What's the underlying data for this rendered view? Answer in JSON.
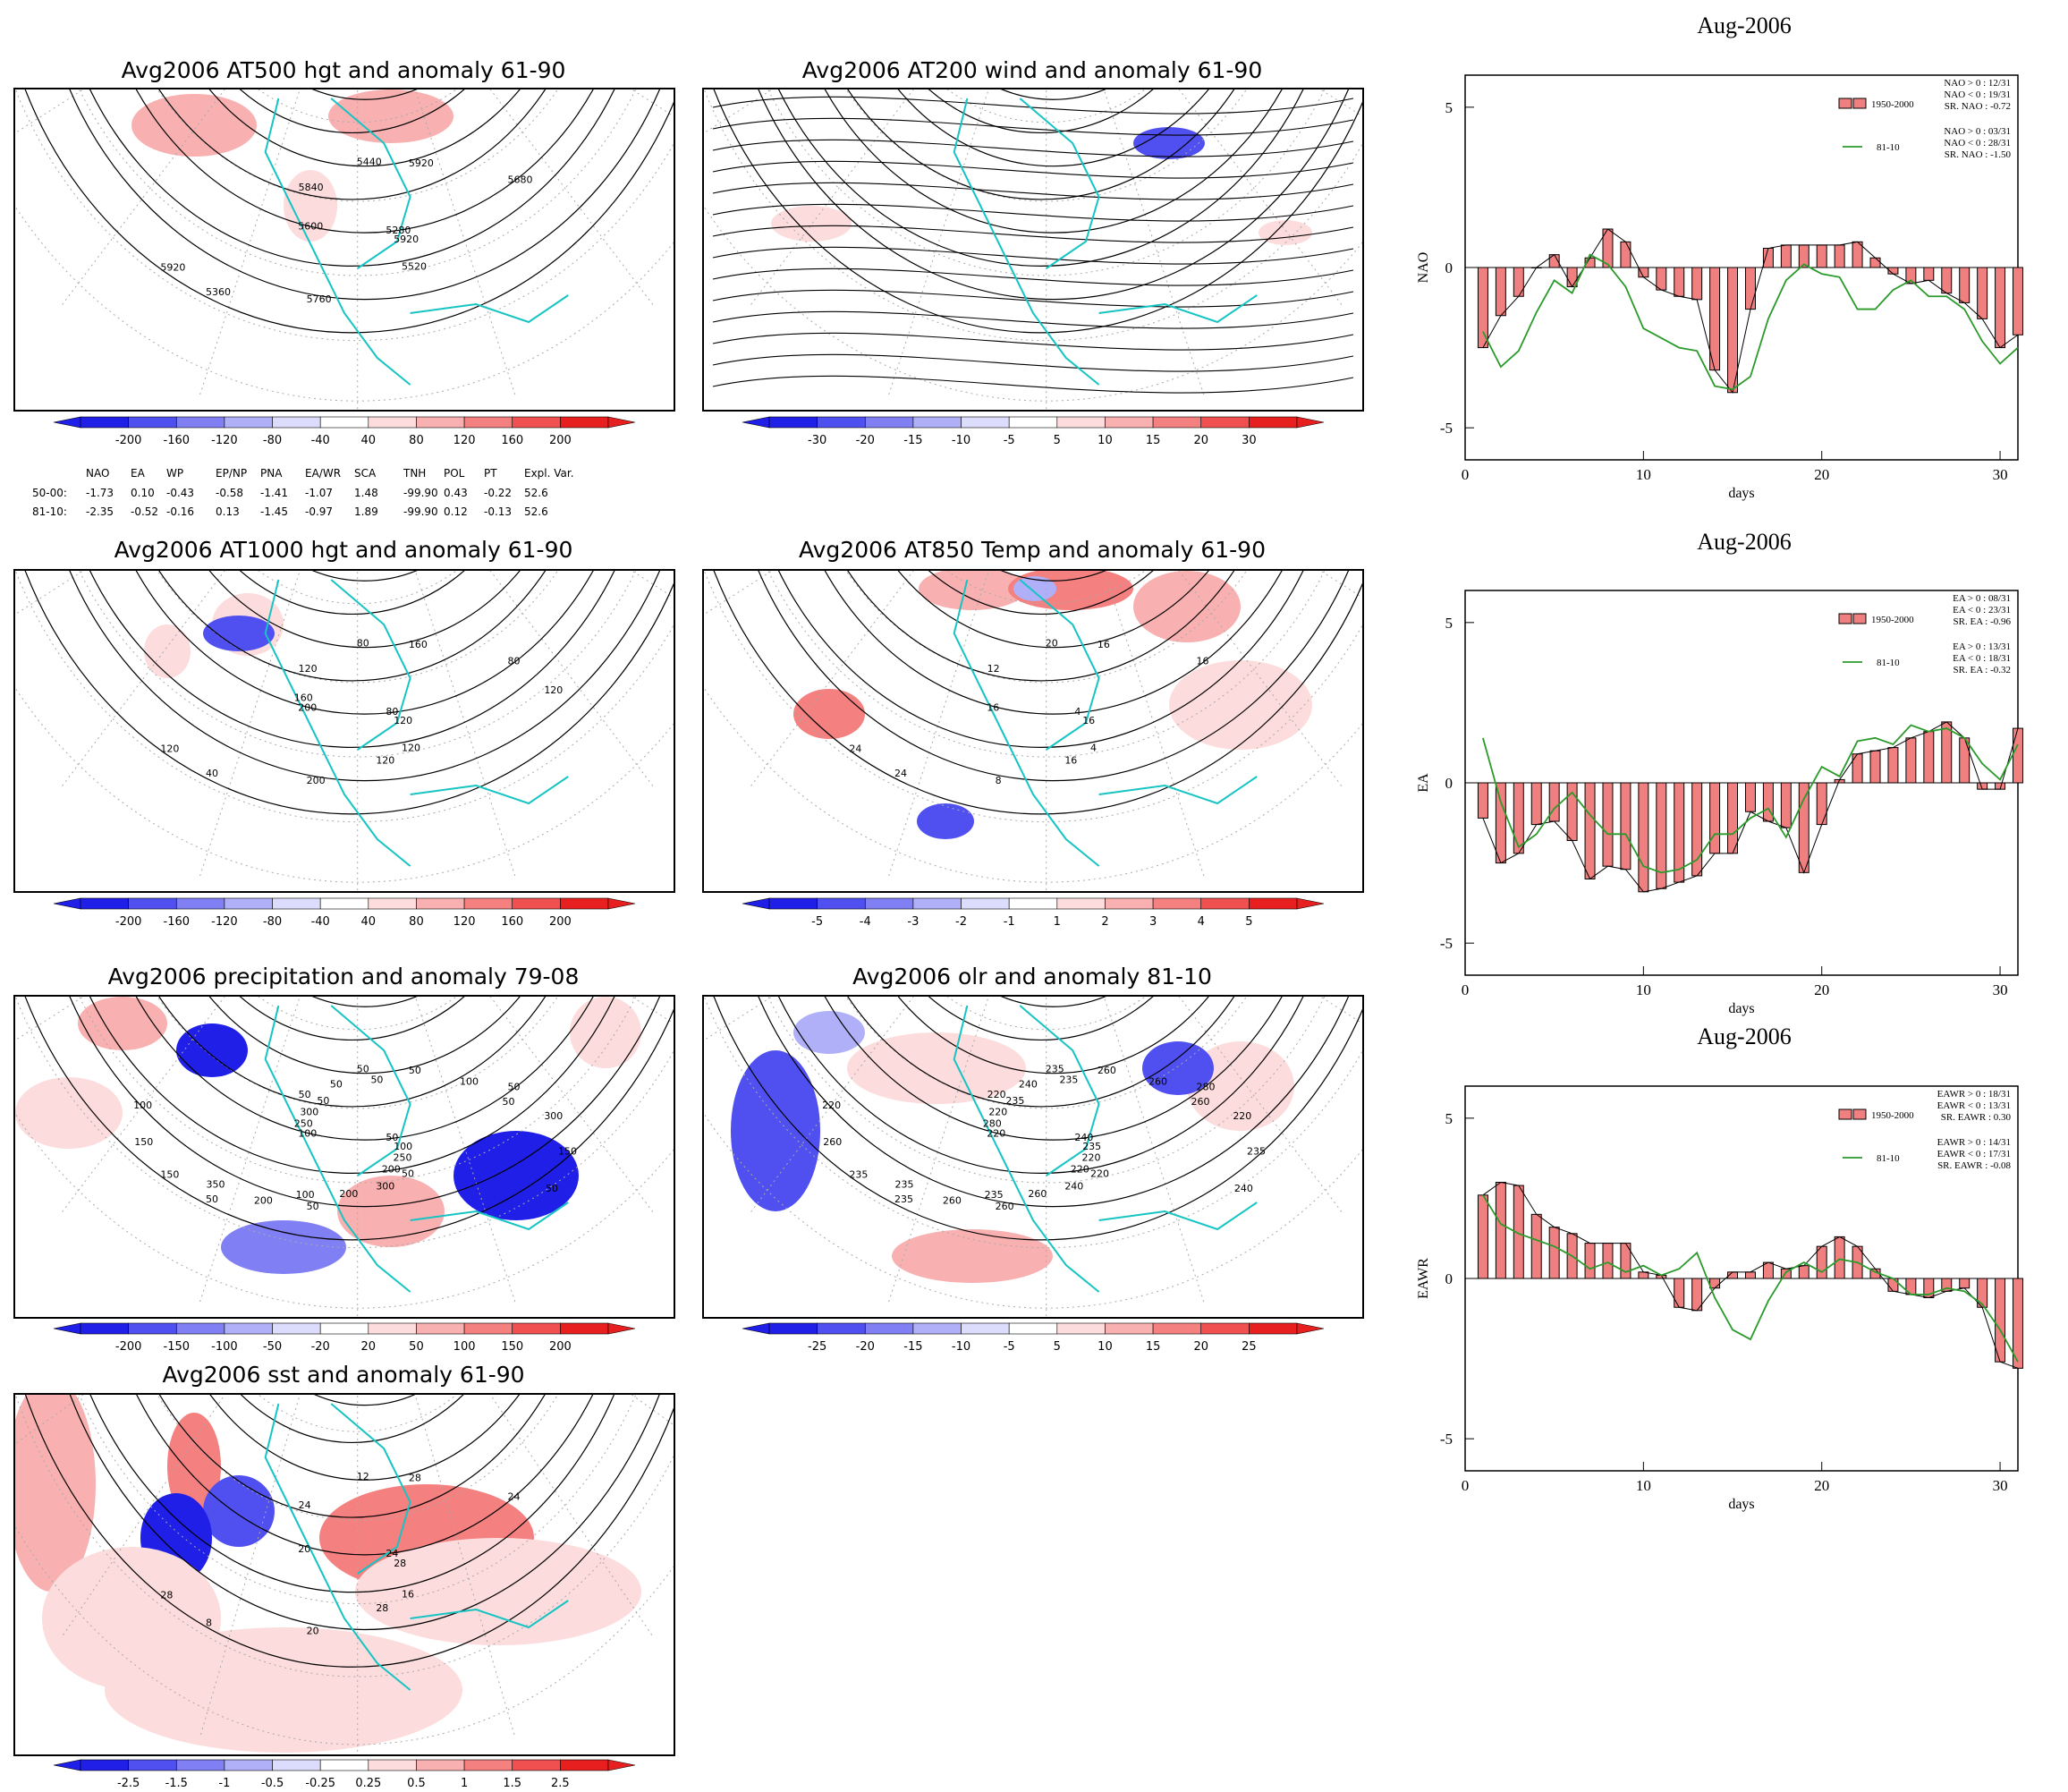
{
  "maps": [
    {
      "id": "z500",
      "title": "Avg2006 AT500 hgt and anomaly 61-90",
      "colorbar": [
        "-200",
        "-160",
        "-120",
        "-80",
        "-40",
        "40",
        "80",
        "120",
        "160",
        "200"
      ],
      "contour_labels": [
        "5280",
        "5360",
        "5440",
        "5520",
        "5600",
        "5680",
        "5760",
        "5840",
        "5920",
        "5920",
        "5920"
      ]
    },
    {
      "id": "u200",
      "title": "Avg2006 AT200 wind and anomaly 61-90",
      "colorbar": [
        "-30",
        "-20",
        "-15",
        "-10",
        "-5",
        "5",
        "10",
        "15",
        "20",
        "30"
      ],
      "contour_labels": []
    },
    {
      "id": "z1000",
      "title": "Avg2006 AT1000 hgt and anomaly 61-90",
      "colorbar": [
        "-200",
        "-160",
        "-120",
        "-80",
        "-40",
        "40",
        "80",
        "120",
        "160",
        "200"
      ],
      "contour_labels": [
        "80",
        "40",
        "80",
        "120",
        "200",
        "80",
        "200",
        "120",
        "120",
        "120",
        "160",
        "120",
        "160",
        "120"
      ]
    },
    {
      "id": "t850",
      "title": "Avg2006 AT850 Temp and anomaly 61-90",
      "colorbar": [
        "-5",
        "-4",
        "-3",
        "-2",
        "-1",
        "1",
        "2",
        "3",
        "4",
        "5"
      ],
      "contour_labels": [
        "4",
        "24",
        "20",
        "4",
        "16",
        "16",
        "8",
        "12",
        "16",
        "24",
        "16",
        "16"
      ]
    },
    {
      "id": "prcp",
      "title": "Avg2006 precipitation and anomaly 79-08",
      "colorbar": [
        "-200",
        "-150",
        "-100",
        "-50",
        "-20",
        "20",
        "50",
        "100",
        "150",
        "200"
      ],
      "contour_labels": [
        "50",
        "50",
        "50",
        "50",
        "100",
        "50",
        "50",
        "50",
        "100",
        "150",
        "50",
        "300",
        "250",
        "300",
        "200",
        "50",
        "250",
        "150",
        "100",
        "200",
        "300",
        "150",
        "350",
        "50",
        "200",
        "100",
        "50",
        "100",
        "50",
        "50"
      ]
    },
    {
      "id": "olr",
      "title": "Avg2006 olr and anomaly 81-10",
      "colorbar": [
        "-25",
        "-20",
        "-15",
        "-10",
        "-5",
        "5",
        "10",
        "15",
        "20",
        "25"
      ],
      "contour_labels": [
        "240",
        "235",
        "235",
        "220",
        "220",
        "280",
        "260",
        "220",
        "235",
        "235",
        "260",
        "240",
        "280",
        "220",
        "260",
        "240",
        "220",
        "260",
        "260",
        "260",
        "220",
        "235",
        "235",
        "235",
        "220",
        "220",
        "260",
        "235",
        "235",
        "240"
      ]
    },
    {
      "id": "sst",
      "title": "Avg2006 sst and anomaly 61-90",
      "colorbar": [
        "-2.5",
        "-1.5",
        "-1",
        "-0.5",
        "-0.25",
        "0.25",
        "0.5",
        "1",
        "1.5",
        "2.5"
      ],
      "contour_labels": [
        "24",
        "8",
        "12",
        "16",
        "20",
        "24",
        "20",
        "24",
        "28",
        "28",
        "28",
        "28"
      ]
    }
  ],
  "colors": {
    "neg": [
      "#1f1fe8",
      "#5050f0",
      "#8080f4",
      "#b0b0f8",
      "#dcdcfc"
    ],
    "pos": [
      "#fcdcdc",
      "#f8b0b0",
      "#f48080",
      "#f05050",
      "#e81f1f"
    ],
    "coast": "#17c4c4",
    "bar_fill": "#f08080",
    "line_green": "#2a9a2a"
  },
  "stats_table": {
    "header": [
      "NAO",
      "EA",
      "WP",
      "EP/NP",
      "PNA",
      "EA/WR",
      "SCA",
      "TNH",
      "POL",
      "PT",
      "Expl. Var."
    ],
    "rows": [
      {
        "label": "50-00:",
        "values": [
          "-1.73",
          "0.10",
          "-0.43",
          "-0.58",
          "-1.41",
          "-1.07",
          "1.48",
          "-99.90",
          "0.43",
          "-0.22",
          "52.6"
        ]
      },
      {
        "label": "81-10:",
        "values": [
          "-2.35",
          "-0.52",
          "-0.16",
          "0.13",
          "-1.45",
          "-0.97",
          "1.89",
          "-99.90",
          "0.12",
          "-0.13",
          "52.6"
        ]
      }
    ]
  },
  "chart_data": [
    {
      "type": "bar",
      "title": "Aug-2006",
      "xlabel": "days",
      "ylabel": "NAO",
      "xlim": [
        0,
        31
      ],
      "ylim": [
        -6,
        6
      ],
      "xticks": [
        "0",
        "10",
        "20",
        "30"
      ],
      "yticks": [
        "5",
        "0",
        "-5"
      ],
      "x": [
        1,
        2,
        3,
        4,
        5,
        6,
        7,
        8,
        9,
        10,
        11,
        12,
        13,
        14,
        15,
        16,
        17,
        18,
        19,
        20,
        21,
        22,
        23,
        24,
        25,
        26,
        27,
        28,
        29,
        30,
        31
      ],
      "series": [
        {
          "name": "1950-2000",
          "kind": "bar",
          "values": [
            -2.5,
            -1.5,
            -0.9,
            0,
            0.4,
            -0.6,
            0.3,
            1.2,
            0.8,
            -0.3,
            -0.7,
            -0.9,
            -1.0,
            -3.2,
            -3.9,
            -1.3,
            0.6,
            0.7,
            0.7,
            0.7,
            0.7,
            0.8,
            0.3,
            -0.2,
            -0.5,
            -0.4,
            -0.8,
            -1.1,
            -1.6,
            -2.5,
            -2.1
          ]
        },
        {
          "name": "81-10",
          "kind": "line",
          "values": [
            -2.0,
            -3.1,
            -2.6,
            -1.4,
            -0.4,
            -0.8,
            0.4,
            0.1,
            -0.6,
            -1.9,
            -2.2,
            -2.5,
            -2.6,
            -3.7,
            -3.8,
            -3.4,
            -1.6,
            -0.4,
            0.1,
            -0.2,
            -0.3,
            -1.3,
            -1.3,
            -0.7,
            -0.4,
            -0.9,
            -0.9,
            -1.3,
            -2.3,
            -3.0,
            -2.5
          ]
        }
      ],
      "legend": {
        "bar_label": "1950-2000",
        "line_label": "81-10",
        "bar_stats": [
          "NAO > 0 : 12/31",
          "NAO < 0 : 19/31",
          "SR. NAO : -0.72"
        ],
        "line_stats": [
          "NAO > 0 : 03/31",
          "NAO < 0 : 28/31",
          "SR. NAO : -1.50"
        ]
      }
    },
    {
      "type": "bar",
      "title": "Aug-2006",
      "xlabel": "days",
      "ylabel": "EA",
      "xlim": [
        0,
        31
      ],
      "ylim": [
        -6,
        6
      ],
      "xticks": [
        "0",
        "10",
        "20",
        "30"
      ],
      "yticks": [
        "5",
        "0",
        "-5"
      ],
      "x": [
        1,
        2,
        3,
        4,
        5,
        6,
        7,
        8,
        9,
        10,
        11,
        12,
        13,
        14,
        15,
        16,
        17,
        18,
        19,
        20,
        21,
        22,
        23,
        24,
        25,
        26,
        27,
        28,
        29,
        30,
        31
      ],
      "series": [
        {
          "name": "1950-2000",
          "kind": "bar",
          "values": [
            -1.1,
            -2.5,
            -2.2,
            -1.3,
            -1.2,
            -1.8,
            -3.0,
            -2.6,
            -2.7,
            -3.4,
            -3.3,
            -3.1,
            -2.9,
            -2.2,
            -2.2,
            -0.9,
            -1.2,
            -1.4,
            -2.8,
            -1.3,
            0.1,
            0.9,
            1.0,
            1.1,
            1.4,
            1.6,
            1.9,
            1.4,
            -0.2,
            -0.2,
            1.7
          ]
        },
        {
          "name": "81-10",
          "kind": "line",
          "values": [
            1.4,
            -0.6,
            -2.0,
            -1.6,
            -0.8,
            -0.3,
            -1.0,
            -1.6,
            -1.6,
            -2.6,
            -2.8,
            -2.7,
            -2.4,
            -1.6,
            -1.6,
            -1.1,
            -0.8,
            -1.7,
            -0.5,
            0.5,
            0.2,
            1.3,
            1.4,
            1.2,
            1.8,
            1.6,
            1.7,
            1.4,
            0.6,
            0.1,
            1.2
          ]
        }
      ],
      "legend": {
        "bar_label": "1950-2000",
        "line_label": "81-10",
        "bar_stats": [
          "EA > 0 : 08/31",
          "EA < 0 : 23/31",
          "SR. EA : -0.96"
        ],
        "line_stats": [
          "EA > 0 : 13/31",
          "EA < 0 : 18/31",
          "SR. EA : -0.32"
        ]
      }
    },
    {
      "type": "bar",
      "title": "Aug-2006",
      "xlabel": "days",
      "ylabel": "EAWR",
      "xlim": [
        0,
        31
      ],
      "ylim": [
        -6,
        6
      ],
      "xticks": [
        "0",
        "10",
        "20",
        "30"
      ],
      "yticks": [
        "5",
        "0",
        "-5"
      ],
      "x": [
        1,
        2,
        3,
        4,
        5,
        6,
        7,
        8,
        9,
        10,
        11,
        12,
        13,
        14,
        15,
        16,
        17,
        18,
        19,
        20,
        21,
        22,
        23,
        24,
        25,
        26,
        27,
        28,
        29,
        30,
        31
      ],
      "series": [
        {
          "name": "1950-2000",
          "kind": "bar",
          "values": [
            2.6,
            3.0,
            2.9,
            2.0,
            1.6,
            1.4,
            1.1,
            1.1,
            1.1,
            0.2,
            0.1,
            -0.9,
            -1.0,
            -0.3,
            0.2,
            0.2,
            0.5,
            0.3,
            0.4,
            1.0,
            1.3,
            1.0,
            0.3,
            -0.4,
            -0.5,
            -0.6,
            -0.4,
            -0.3,
            -0.9,
            -2.6,
            -2.8
          ]
        },
        {
          "name": "81-10",
          "kind": "line",
          "values": [
            2.6,
            1.7,
            1.4,
            1.2,
            1.0,
            0.7,
            0.3,
            0.5,
            0.2,
            0.4,
            0.1,
            0.3,
            0.8,
            -0.6,
            -1.6,
            -1.9,
            -0.7,
            0.2,
            0.5,
            0.2,
            0.6,
            0.5,
            0.2,
            0.0,
            -0.5,
            -0.5,
            -0.3,
            -0.4,
            -0.8,
            -1.6,
            -2.6
          ]
        }
      ],
      "legend": {
        "bar_label": "1950-2000",
        "line_label": "81-10",
        "bar_stats": [
          "EAWR > 0 : 18/31",
          "EAWR < 0 : 13/31",
          "SR. EAWR : 0.30"
        ],
        "line_stats": [
          "EAWR > 0 : 14/31",
          "EAWR < 0 : 17/31",
          "SR. EAWR : -0.08"
        ]
      }
    }
  ]
}
